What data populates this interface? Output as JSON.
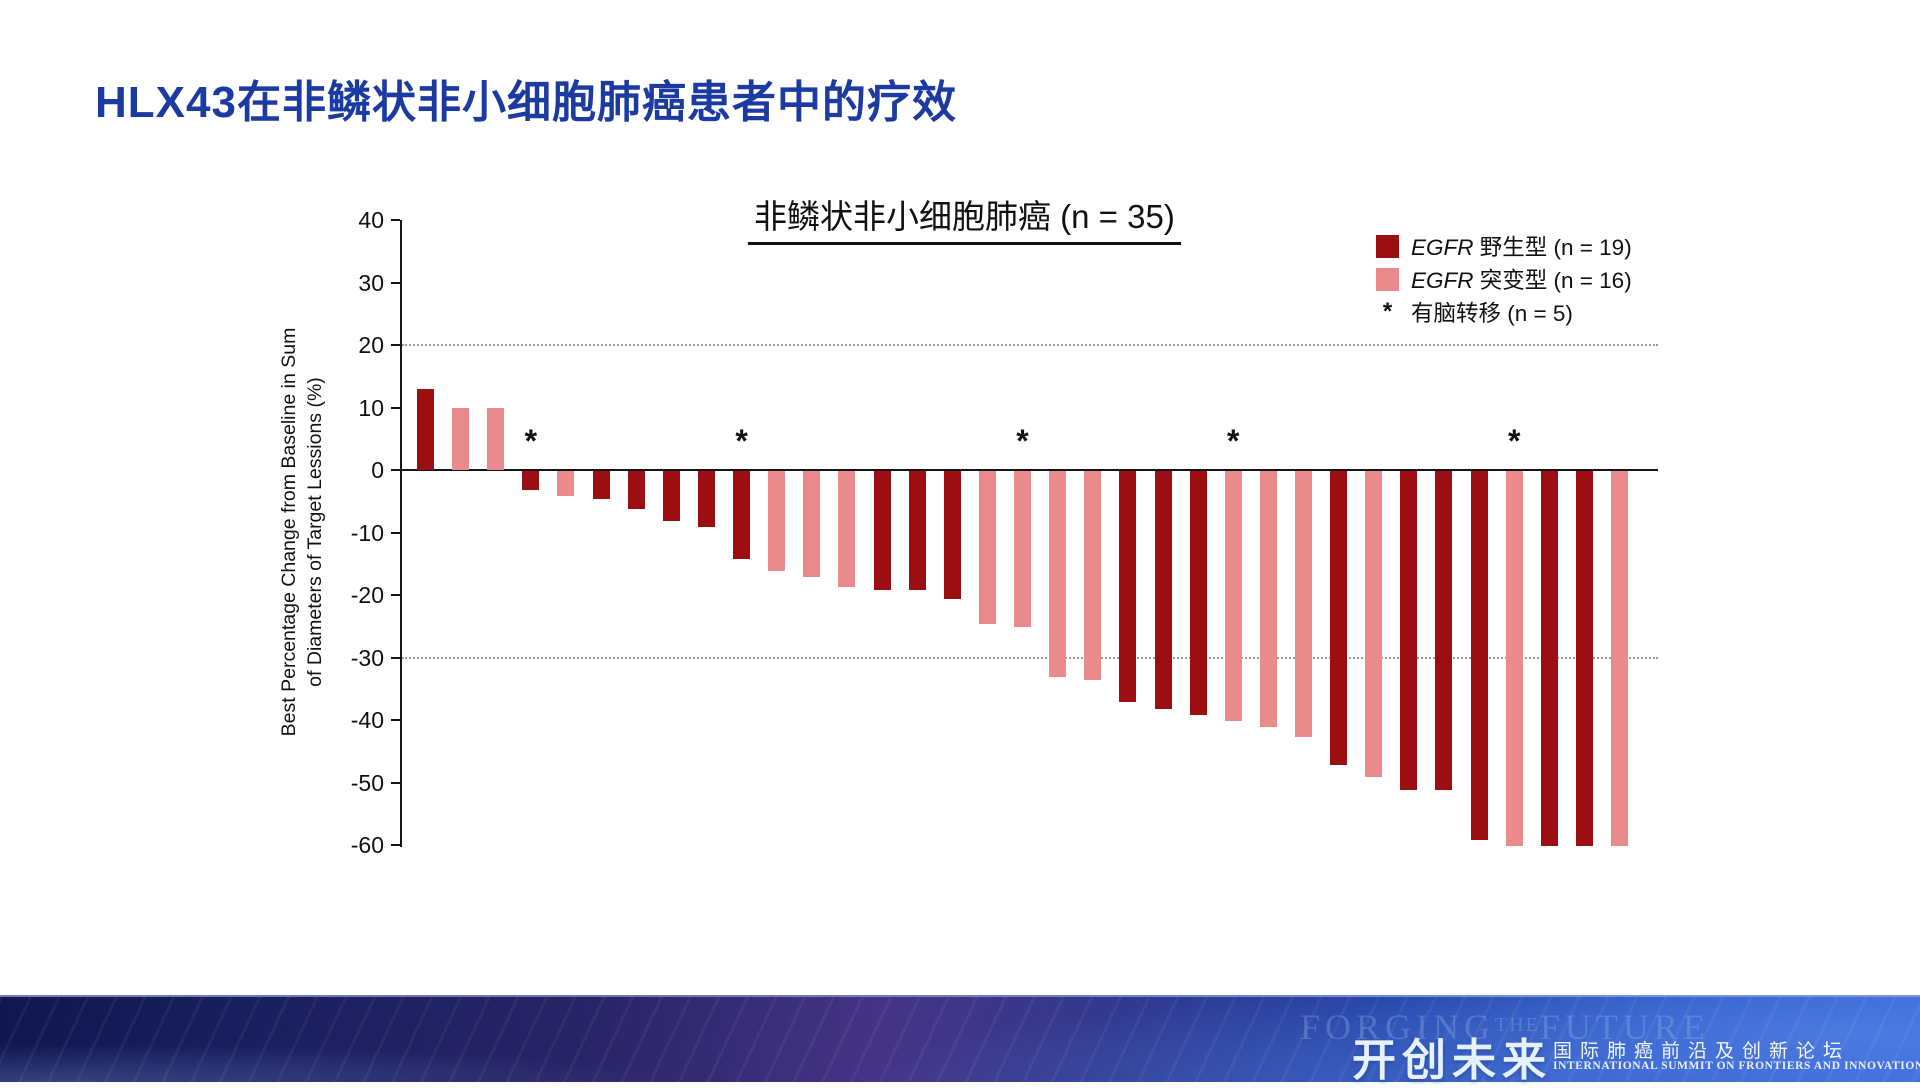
{
  "slide": {
    "title": "HLX43在非鳞状非小细胞肺癌患者中的疗效",
    "title_color": "#1B3AA2"
  },
  "chart_data": {
    "type": "bar",
    "title": "非鳞状非小细胞肺癌 (n = 35)",
    "ylabel_line1": "Best Percentage Change from Baseline in Sum",
    "ylabel_line2": "of Diameters of Target Lessions (%)",
    "ylim": [
      -60,
      40
    ],
    "yticks": [
      40,
      30,
      20,
      10,
      0,
      -10,
      -20,
      -30,
      -40,
      -50,
      -60
    ],
    "gridlines": [
      20,
      -30
    ],
    "grid_style": "dotted",
    "legend_position": "top-right",
    "colors": {
      "wild": "#9B0E11",
      "mut": "#EA8A8D"
    },
    "legend_items": [
      {
        "gene": "EGFR",
        "rest": " 野生型 (n = 19)",
        "group": "wild"
      },
      {
        "gene": "EGFR",
        "rest": " 突变型 (n = 16)",
        "group": "mut"
      },
      {
        "marker": "*",
        "rest": "有脑转移 (n = 5)",
        "group": "brain"
      }
    ],
    "bars": [
      {
        "value": 13,
        "group": "wild",
        "brain_met": false
      },
      {
        "value": 10,
        "group": "mut",
        "brain_met": false
      },
      {
        "value": 10,
        "group": "mut",
        "brain_met": false
      },
      {
        "value": -3,
        "group": "wild",
        "brain_met": true
      },
      {
        "value": -4,
        "group": "mut",
        "brain_met": false
      },
      {
        "value": -4.5,
        "group": "wild",
        "brain_met": false
      },
      {
        "value": -6,
        "group": "wild",
        "brain_met": false
      },
      {
        "value": -8,
        "group": "wild",
        "brain_met": false
      },
      {
        "value": -9,
        "group": "wild",
        "brain_met": false
      },
      {
        "value": -14,
        "group": "wild",
        "brain_met": true
      },
      {
        "value": -16,
        "group": "mut",
        "brain_met": false
      },
      {
        "value": -17,
        "group": "mut",
        "brain_met": false
      },
      {
        "value": -18.5,
        "group": "mut",
        "brain_met": false
      },
      {
        "value": -19,
        "group": "wild",
        "brain_met": false
      },
      {
        "value": -19,
        "group": "wild",
        "brain_met": false
      },
      {
        "value": -20.5,
        "group": "wild",
        "brain_met": false
      },
      {
        "value": -24.5,
        "group": "mut",
        "brain_met": false
      },
      {
        "value": -25,
        "group": "mut",
        "brain_met": true
      },
      {
        "value": -33,
        "group": "mut",
        "brain_met": false
      },
      {
        "value": -33.5,
        "group": "mut",
        "brain_met": false
      },
      {
        "value": -37,
        "group": "wild",
        "brain_met": false
      },
      {
        "value": -38,
        "group": "wild",
        "brain_met": false
      },
      {
        "value": -39,
        "group": "wild",
        "brain_met": false
      },
      {
        "value": -40,
        "group": "mut",
        "brain_met": true
      },
      {
        "value": -41,
        "group": "mut",
        "brain_met": false
      },
      {
        "value": -42.5,
        "group": "mut",
        "brain_met": false
      },
      {
        "value": -47,
        "group": "wild",
        "brain_met": false
      },
      {
        "value": -49,
        "group": "mut",
        "brain_met": false
      },
      {
        "value": -51,
        "group": "wild",
        "brain_met": false
      },
      {
        "value": -51,
        "group": "wild",
        "brain_met": false
      },
      {
        "value": -59,
        "group": "wild",
        "brain_met": false
      },
      {
        "value": -60,
        "group": "mut",
        "brain_met": true
      },
      {
        "value": -60,
        "group": "wild",
        "brain_met": false
      },
      {
        "value": -60,
        "group": "wild",
        "brain_met": false
      },
      {
        "value": -60,
        "group": "mut",
        "brain_met": false
      }
    ]
  },
  "footer": {
    "watermark_a": "FORGING",
    "watermark_b": "THE",
    "watermark_c": "FUTURE",
    "logo": "开创未来",
    "subtitle_cn": "国际肺癌前沿及创新论坛",
    "subtitle_en": "INTERNATIONAL SUMMIT ON FRONTIERS AND INNOVATIONS IN LUNG CANCER"
  }
}
